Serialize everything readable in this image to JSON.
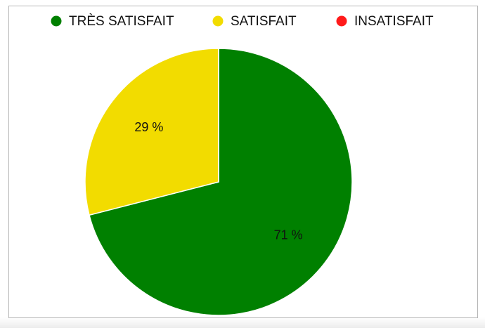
{
  "chart_data": {
    "type": "pie",
    "categories": [
      "TRÈS SATISFAIT",
      "SATISFAIT",
      "INSATISFAIT"
    ],
    "values": [
      71,
      29,
      0
    ],
    "value_labels": [
      "71 %",
      "29 %",
      null
    ],
    "colors": [
      "#008000",
      "#f2dc00",
      "#ff1a1a"
    ]
  }
}
